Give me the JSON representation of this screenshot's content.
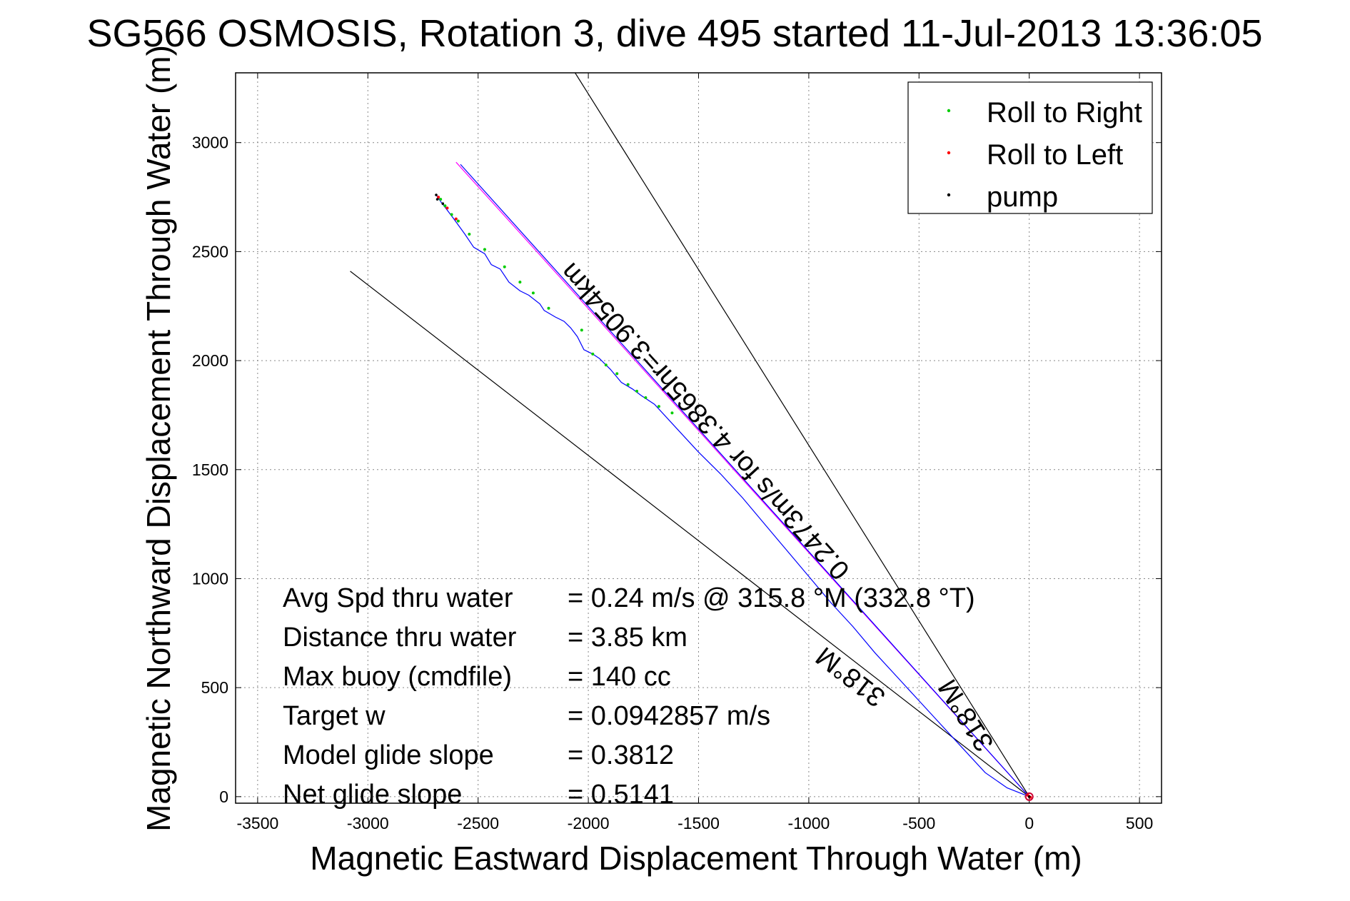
{
  "chart_data": {
    "type": "line",
    "title": "SG566 OSMOSIS, Rotation 3, dive 495 started 11-Jul-2013 13:36:05",
    "xlabel": "Magnetic Eastward Displacement Through Water (m)",
    "ylabel": "Magnetic Northward Displacement Through Water (m)",
    "xlim": [
      -3600,
      600
    ],
    "ylim": [
      -30,
      3320
    ],
    "xticks": [
      -3500,
      -3000,
      -2500,
      -2000,
      -1500,
      -1000,
      -500,
      0,
      500
    ],
    "yticks": [
      0,
      500,
      1000,
      1500,
      2000,
      2500,
      3000
    ],
    "grid": true,
    "legend_position": "top-right",
    "legend": [
      {
        "label": "Roll to Right",
        "color": "#00cc00"
      },
      {
        "label": "Roll to Left",
        "color": "#ff0000"
      },
      {
        "label": "pump",
        "color": "#000000"
      }
    ],
    "track": {
      "color": "#0000ff",
      "x": [
        -2690,
        -2670,
        -2640,
        -2610,
        -2560,
        -2520,
        -2470,
        -2440,
        -2400,
        -2360,
        -2310,
        -2270,
        -2220,
        -2200,
        -2150,
        -2110,
        -2080,
        -2050,
        -2020,
        -1980,
        -1950,
        -1900,
        -1850,
        -1800,
        -1760,
        -1700,
        -1600,
        -1500,
        -1400,
        -1300,
        -1200,
        -1100,
        -1000,
        -900,
        -800,
        -700,
        -600,
        -500,
        -400,
        -300,
        -200,
        -100,
        0
      ],
      "y": [
        2760,
        2730,
        2690,
        2650,
        2580,
        2520,
        2490,
        2440,
        2420,
        2360,
        2320,
        2300,
        2260,
        2230,
        2200,
        2180,
        2150,
        2110,
        2050,
        2030,
        2010,
        1960,
        1900,
        1870,
        1840,
        1800,
        1690,
        1580,
        1480,
        1370,
        1250,
        1130,
        1010,
        890,
        780,
        660,
        550,
        440,
        330,
        220,
        110,
        40,
        0
      ]
    },
    "roll_right_points": {
      "x": [
        -2670,
        -2650,
        -2620,
        -2590,
        -2540,
        -2470,
        -2380,
        -2310,
        -2250,
        -2180,
        -2030,
        -1980,
        -1920,
        -1870,
        -1820,
        -1780,
        -1740,
        -1680,
        -1620
      ],
      "y": [
        2740,
        2710,
        2670,
        2640,
        2580,
        2510,
        2430,
        2360,
        2310,
        2240,
        2140,
        2030,
        1980,
        1940,
        1890,
        1860,
        1830,
        1790,
        1760
      ]
    },
    "roll_left_points": {
      "x": [
        -2680,
        -2640,
        -2600,
        -5,
        0,
        5
      ],
      "y": [
        2750,
        2700,
        2650,
        5,
        0,
        -3
      ]
    },
    "pump_points": {
      "x": [
        -2690,
        -2685,
        -2660,
        0
      ],
      "y": [
        2760,
        2740,
        2720,
        0
      ]
    },
    "lines": [
      {
        "name": "318°M upper",
        "color": "#000000",
        "x": [
          -2060,
          0
        ],
        "y": [
          3320,
          0
        ],
        "label": "318°M"
      },
      {
        "name": "318°M lower",
        "color": "#000000",
        "x": [
          -3080,
          0
        ],
        "y": [
          2410,
          0
        ],
        "label": "318°M"
      },
      {
        "name": "0.2473 m/s heading",
        "color": "#ff00ff",
        "x": [
          -2600,
          0
        ],
        "y": [
          2910,
          0
        ],
        "label": "0.2473m/s for 4.3865hr=3.9054km"
      },
      {
        "name": "magenta-companion",
        "color": "#0000ff",
        "x": [
          -2580,
          0
        ],
        "y": [
          2900,
          0
        ]
      }
    ],
    "annotations": [
      {
        "label": "Avg Spd thru water",
        "value": "=  0.24 m/s @ 315.8 °M (332.8 °T)"
      },
      {
        "label": "Distance thru water",
        "value": "=  3.85 km"
      },
      {
        "label": "Max buoy (cmdfile)",
        "value": "= 140 cc"
      },
      {
        "label": "Target w",
        "value": "= 0.0942857 m/s"
      },
      {
        "label": "Model glide slope",
        "value": "= 0.3812"
      },
      {
        "label": "Net glide slope",
        "value": "= 0.5141"
      }
    ]
  }
}
